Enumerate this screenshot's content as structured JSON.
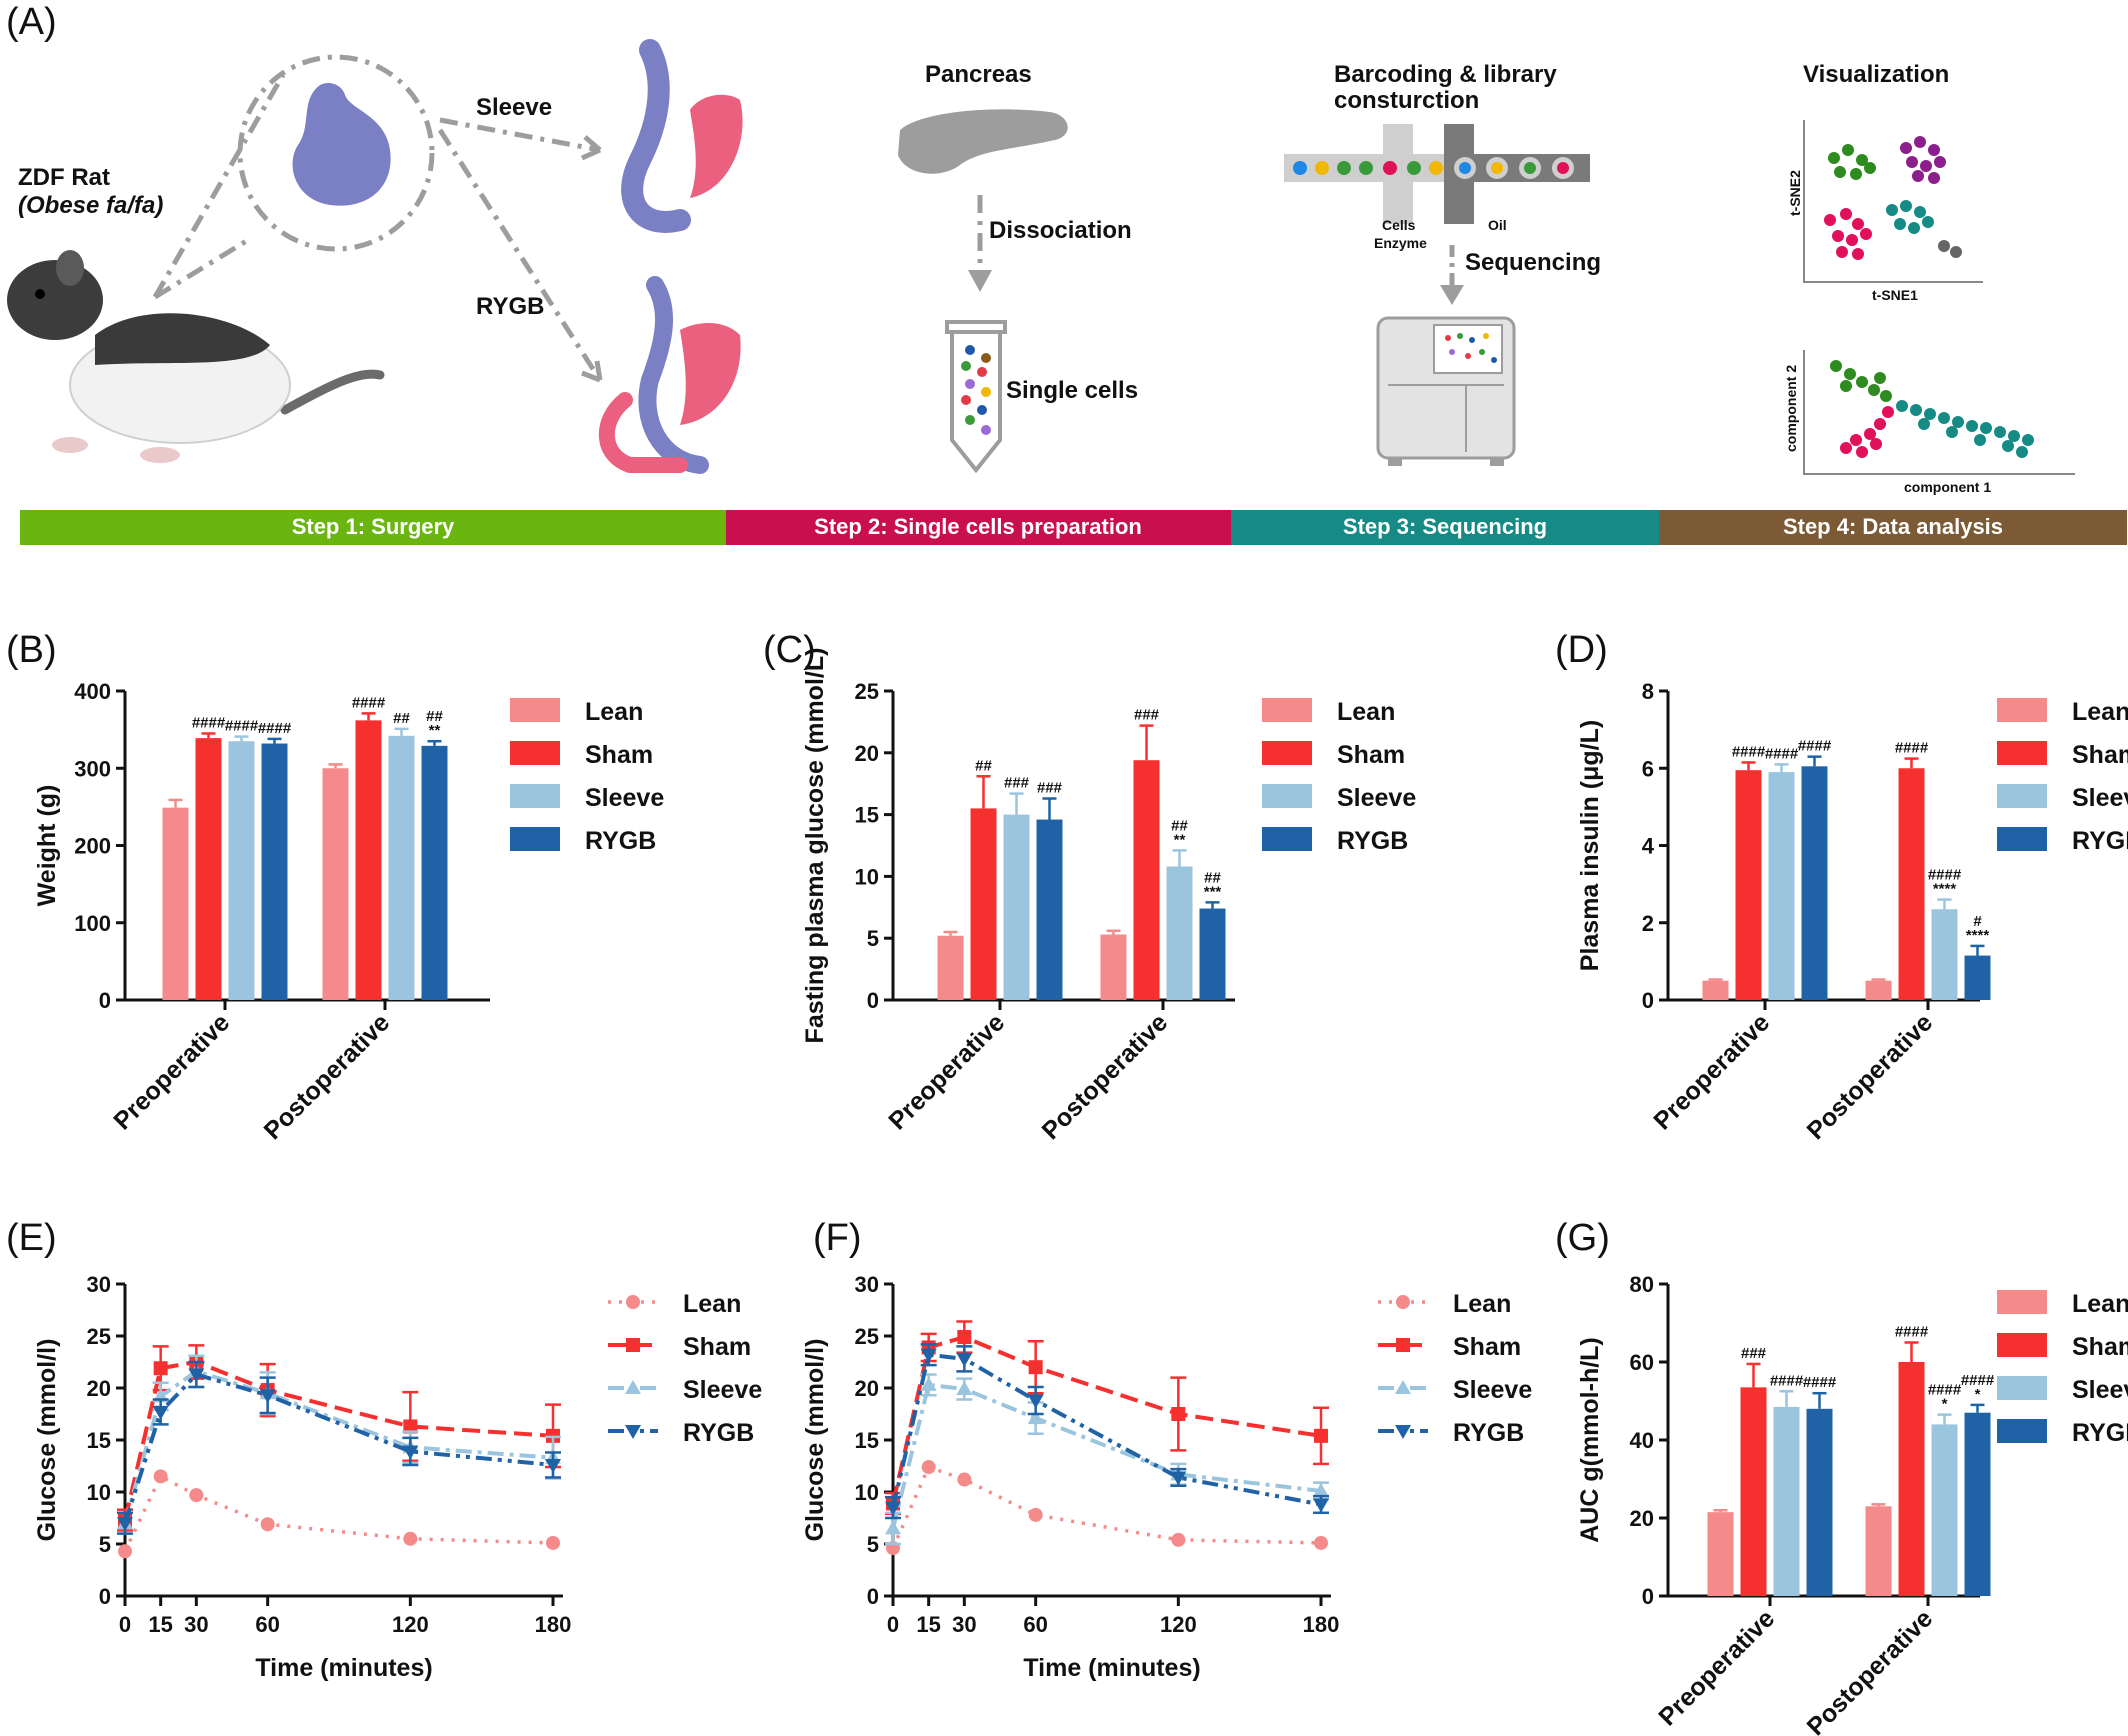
{
  "panel_a": {
    "label": "(A)",
    "rat_label": "ZDF Rat",
    "rat_sublabel": "(Obese fa/fa)",
    "sleeve_label": "Sleeve",
    "rygb_label": "RYGB",
    "pancreas_label": "Pancreas",
    "dissociation_label": "Dissociation",
    "single_cells_label": "Single cells",
    "barcoding_label_1": "Barcoding & library",
    "barcoding_label_2": "consturction",
    "cells_label": "Cells",
    "enzyme_label": "Enzyme",
    "oil_label": "Oil",
    "sequencing_label": "Sequencing",
    "visualization_label": "Visualization",
    "tsne2_label": "t-SNE2",
    "tsne1_label": "t-SNE1",
    "component2_label": "component 2",
    "component1_label": "component 1",
    "steps": [
      {
        "label": "Step 1: Surgery",
        "color": "#6ab510"
      },
      {
        "label": "Step 2: Single cells preparation",
        "color": "#c8104f"
      },
      {
        "label": "Step 3: Sequencing",
        "color": "#168b86"
      },
      {
        "label": "Step 4: Data analysis",
        "color": "#7b5a35"
      }
    ],
    "colors": {
      "stomach_blue": "#7b80c4",
      "stomach_pink": "#eb607e",
      "gray": "#9d9d9d"
    }
  },
  "legend_labels": [
    "Lean",
    "Sham",
    "Sleeve",
    "RYGB"
  ],
  "series_colors": [
    "#f48a8a",
    "#f5302f",
    "#9bc4de",
    "#1f63a6"
  ],
  "chart_data": [
    {
      "id": "B",
      "panel_label": "(B)",
      "type": "bar",
      "categories": [
        "Preoperative",
        "Postoperative"
      ],
      "ylabel": "Weight (g)",
      "xlabel": "",
      "ylim": [
        0,
        400
      ],
      "yticks": [
        0,
        100,
        200,
        300,
        400
      ],
      "series": [
        {
          "name": "Lean",
          "values": [
            249,
            300
          ],
          "errors": [
            10,
            5
          ],
          "annotations": [
            "",
            ""
          ]
        },
        {
          "name": "Sham",
          "values": [
            339,
            362
          ],
          "errors": [
            6,
            9
          ],
          "annotations": [
            "####",
            "####"
          ]
        },
        {
          "name": "Sleeve",
          "values": [
            335,
            342
          ],
          "errors": [
            6,
            9
          ],
          "annotations": [
            "####",
            "##"
          ]
        },
        {
          "name": "RYGB",
          "values": [
            332,
            329
          ],
          "errors": [
            6,
            6
          ],
          "annotations": [
            "####",
            "##\n**"
          ]
        }
      ]
    },
    {
      "id": "C",
      "panel_label": "(C)",
      "type": "bar",
      "categories": [
        "Preoperative",
        "Postoperative"
      ],
      "ylabel": "Fasting plasma glucose (mmol/L)",
      "xlabel": "",
      "ylim": [
        0,
        25
      ],
      "yticks": [
        0,
        5,
        10,
        15,
        20,
        25
      ],
      "series": [
        {
          "name": "Lean",
          "values": [
            5.2,
            5.3
          ],
          "errors": [
            0.3,
            0.3
          ],
          "annotations": [
            "",
            ""
          ]
        },
        {
          "name": "Sham",
          "values": [
            15.5,
            19.4
          ],
          "errors": [
            2.6,
            2.8
          ],
          "annotations": [
            "##",
            "###"
          ]
        },
        {
          "name": "Sleeve",
          "values": [
            15.0,
            10.8
          ],
          "errors": [
            1.7,
            1.3
          ],
          "annotations": [
            "###",
            "##\n**"
          ]
        },
        {
          "name": "RYGB",
          "values": [
            14.6,
            7.4
          ],
          "errors": [
            1.7,
            0.5
          ],
          "annotations": [
            "###",
            "##\n***"
          ]
        }
      ]
    },
    {
      "id": "D",
      "panel_label": "(D)",
      "type": "bar",
      "categories": [
        "Preoperative",
        "Postoperative"
      ],
      "ylabel": "Plasma insulin (μg/L)",
      "xlabel": "",
      "ylim": [
        0,
        8
      ],
      "yticks": [
        0,
        2,
        4,
        6,
        8
      ],
      "series": [
        {
          "name": "Lean",
          "values": [
            0.5,
            0.5
          ],
          "errors": [
            0.03,
            0.03
          ],
          "annotations": [
            "",
            ""
          ]
        },
        {
          "name": "Sham",
          "values": [
            5.95,
            6.0
          ],
          "errors": [
            0.2,
            0.25
          ],
          "annotations": [
            "####",
            "####"
          ]
        },
        {
          "name": "Sleeve",
          "values": [
            5.9,
            2.35
          ],
          "errors": [
            0.2,
            0.25
          ],
          "annotations": [
            "####",
            "####\n****"
          ]
        },
        {
          "name": "RYGB",
          "values": [
            6.05,
            1.15
          ],
          "errors": [
            0.25,
            0.25
          ],
          "annotations": [
            "####",
            "#\n****"
          ]
        }
      ]
    },
    {
      "id": "E",
      "panel_label": "(E)",
      "type": "line",
      "x": [
        0,
        15,
        30,
        60,
        120,
        180
      ],
      "xlabel": "Time (minutes)",
      "ylabel": "Glucose (mmol/l)",
      "xlim": [
        0,
        180
      ],
      "ylim": [
        0,
        30
      ],
      "yticks": [
        0,
        5,
        10,
        15,
        20,
        25,
        30
      ],
      "series": [
        {
          "name": "Lean",
          "values": [
            4.3,
            11.5,
            9.7,
            6.9,
            5.5,
            5.1
          ],
          "errors": [
            0,
            0,
            0,
            0,
            0,
            0
          ]
        },
        {
          "name": "Sham",
          "values": [
            7.3,
            21.9,
            22.5,
            19.8,
            16.3,
            15.4
          ],
          "errors": [
            1.0,
            2.1,
            1.6,
            2.5,
            3.3,
            3.0
          ]
        },
        {
          "name": "Sleeve",
          "values": [
            7.0,
            19.2,
            21.6,
            19.5,
            14.3,
            13.3
          ],
          "errors": [
            1.0,
            1.3,
            1.5,
            2.0,
            1.5,
            2.0
          ]
        },
        {
          "name": "RYGB",
          "values": [
            7.0,
            17.7,
            21.3,
            19.3,
            13.9,
            12.6
          ],
          "errors": [
            1.0,
            1.2,
            1.2,
            1.7,
            1.3,
            1.2
          ]
        }
      ]
    },
    {
      "id": "F",
      "panel_label": "(F)",
      "type": "line",
      "x": [
        0,
        15,
        30,
        60,
        120,
        180
      ],
      "xlabel": "Time (minutes)",
      "ylabel": "Glucose (mmol/l)",
      "xlim": [
        0,
        180
      ],
      "ylim": [
        0,
        30
      ],
      "yticks": [
        0,
        5,
        10,
        15,
        20,
        25,
        30
      ],
      "series": [
        {
          "name": "Lean",
          "values": [
            4.6,
            12.4,
            11.2,
            7.8,
            5.4,
            5.1
          ],
          "errors": [
            0,
            0,
            0,
            0,
            0,
            0
          ]
        },
        {
          "name": "Sham",
          "values": [
            8.9,
            23.9,
            24.9,
            22.0,
            17.5,
            15.4
          ],
          "errors": [
            1.0,
            1.3,
            1.5,
            2.5,
            3.5,
            2.7
          ]
        },
        {
          "name": "Sleeve",
          "values": [
            6.5,
            20.3,
            19.9,
            17.1,
            11.7,
            10.1
          ],
          "errors": [
            1.5,
            1.0,
            1.0,
            1.5,
            1.0,
            0.8
          ]
        },
        {
          "name": "RYGB",
          "values": [
            8.5,
            23.2,
            22.8,
            18.8,
            11.4,
            8.8
          ],
          "errors": [
            1.0,
            1.0,
            1.2,
            1.3,
            0.8,
            0.8
          ]
        }
      ]
    },
    {
      "id": "G",
      "panel_label": "(G)",
      "type": "bar",
      "categories": [
        "Preoperative",
        "Postoperative"
      ],
      "ylabel": "AUC g(mmol-h/L)",
      "xlabel": "",
      "ylim": [
        0,
        80
      ],
      "yticks": [
        0,
        20,
        40,
        60,
        80
      ],
      "series": [
        {
          "name": "Lean",
          "values": [
            21.5,
            23.0
          ],
          "errors": [
            0.5,
            0.5
          ],
          "annotations": [
            "",
            ""
          ]
        },
        {
          "name": "Sham",
          "values": [
            53.5,
            60.0
          ],
          "errors": [
            6.0,
            5.0
          ],
          "annotations": [
            "###",
            "####"
          ]
        },
        {
          "name": "Sleeve",
          "values": [
            48.5,
            44.0
          ],
          "errors": [
            4.0,
            2.5
          ],
          "annotations": [
            "####",
            "####\n*"
          ]
        },
        {
          "name": "RYGB",
          "values": [
            48.0,
            47.0
          ],
          "errors": [
            4.0,
            2.0
          ],
          "annotations": [
            "####",
            "####\n*"
          ]
        }
      ]
    }
  ]
}
